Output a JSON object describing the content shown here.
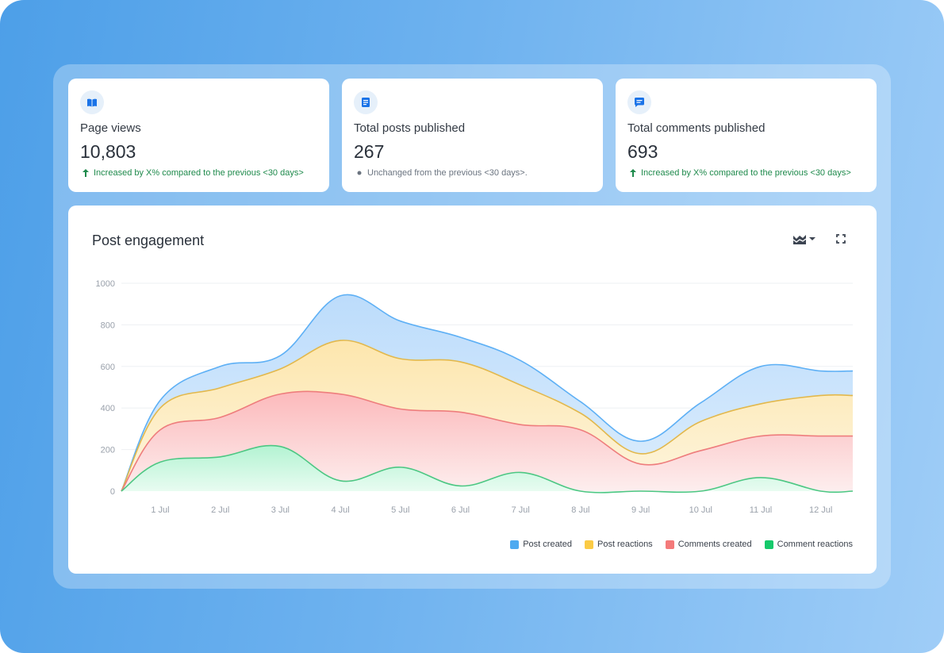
{
  "stats": [
    {
      "icon": "book-open-icon",
      "label": "Page views",
      "value": "10,803",
      "trend_icon": "arrow-up-icon",
      "trend": "Increased by X% compared to the previous <30 days>",
      "trend_type": "up"
    },
    {
      "icon": "document-icon",
      "label": "Total posts published",
      "value": "267",
      "trend_icon": "dot-icon",
      "trend": "Unchanged from the previous <30 days>.",
      "trend_type": "neutral"
    },
    {
      "icon": "comment-icon",
      "label": "Total comments published",
      "value": "693",
      "trend_icon": "arrow-up-icon",
      "trend": "Increased by X% compared to the previous <30 days>",
      "trend_type": "up"
    }
  ],
  "colors": {
    "accent": "#1a73e8",
    "positive": "#1f8a4c",
    "neutral": "#6b7480"
  },
  "chart_card": {
    "title": "Post engagement",
    "chart_type_button_icon": "area-chart-icon",
    "expand_button_icon": "fullscreen-icon"
  },
  "chart_data": {
    "type": "area",
    "stacked": true,
    "smooth": true,
    "categories": [
      "1 Jul",
      "2 Jul",
      "3 Jul",
      "4 Jul",
      "5 Jul",
      "6 Jul",
      "7 Jul",
      "8 Jul",
      "9 Jul",
      "10 Jul",
      "11 Jul",
      "12 Jul"
    ],
    "yticks": [
      "0",
      "200",
      "400",
      "600",
      "800",
      "1000"
    ],
    "ylim": [
      0,
      1000
    ],
    "grid": true,
    "legend_placement": "bottom-right",
    "series": [
      {
        "name": "Comment reactions",
        "color": "#16c96b",
        "line": "#4cc783",
        "values": [
          140,
          165,
          215,
          50,
          115,
          25,
          90,
          0,
          0,
          0,
          65,
          0
        ]
      },
      {
        "name": "Comments created",
        "color": "#f47a7a",
        "line": "#ee7d7d",
        "values": [
          155,
          190,
          252,
          417,
          280,
          355,
          230,
          295,
          130,
          195,
          200,
          265
        ]
      },
      {
        "name": "Post reactions",
        "color": "#fbcb45",
        "line": "#e2b84c",
        "values": [
          105,
          142,
          121,
          258,
          242,
          242,
          190,
          80,
          50,
          140,
          155,
          195
        ]
      },
      {
        "name": "Post created",
        "color": "#4eaaf0",
        "line": "#5eb0f5",
        "values": [
          37,
          103,
          64,
          215,
          181,
          118,
          118,
          55,
          60,
          90,
          180,
          118
        ]
      }
    ]
  }
}
